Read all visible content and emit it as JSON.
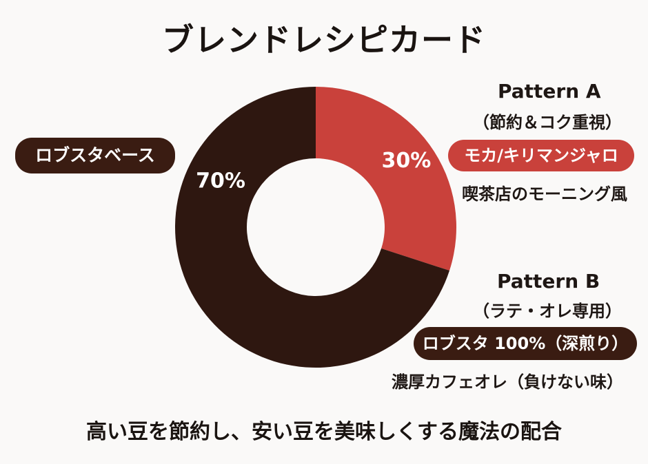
{
  "title": "ブレンドレシピカード",
  "chart_data": {
    "type": "pie",
    "donut": true,
    "slices": [
      {
        "label": "30%",
        "value": 30,
        "color": "#c9413b"
      },
      {
        "label": "70%",
        "value": 70,
        "color": "#2e1710"
      }
    ]
  },
  "base_label": "ロブスタベース",
  "pattern_a": {
    "title": "Pattern A",
    "subtitle": "（節約＆コク重視）",
    "badge": "モカ/キリマンジャロ",
    "description": "喫茶店のモーニング風"
  },
  "pattern_b": {
    "title": "Pattern B",
    "subtitle": "（ラテ・オレ専用）",
    "badge": "ロブスタ 100%（深煎り）",
    "description": "濃厚カフェオレ（負けない味）"
  },
  "footer": "高い豆を節約し、安い豆を美味しくする魔法の配合",
  "colors": {
    "dark_brown": "#2e1710",
    "pill_brown": "#3a1c12",
    "red": "#c9413b"
  }
}
